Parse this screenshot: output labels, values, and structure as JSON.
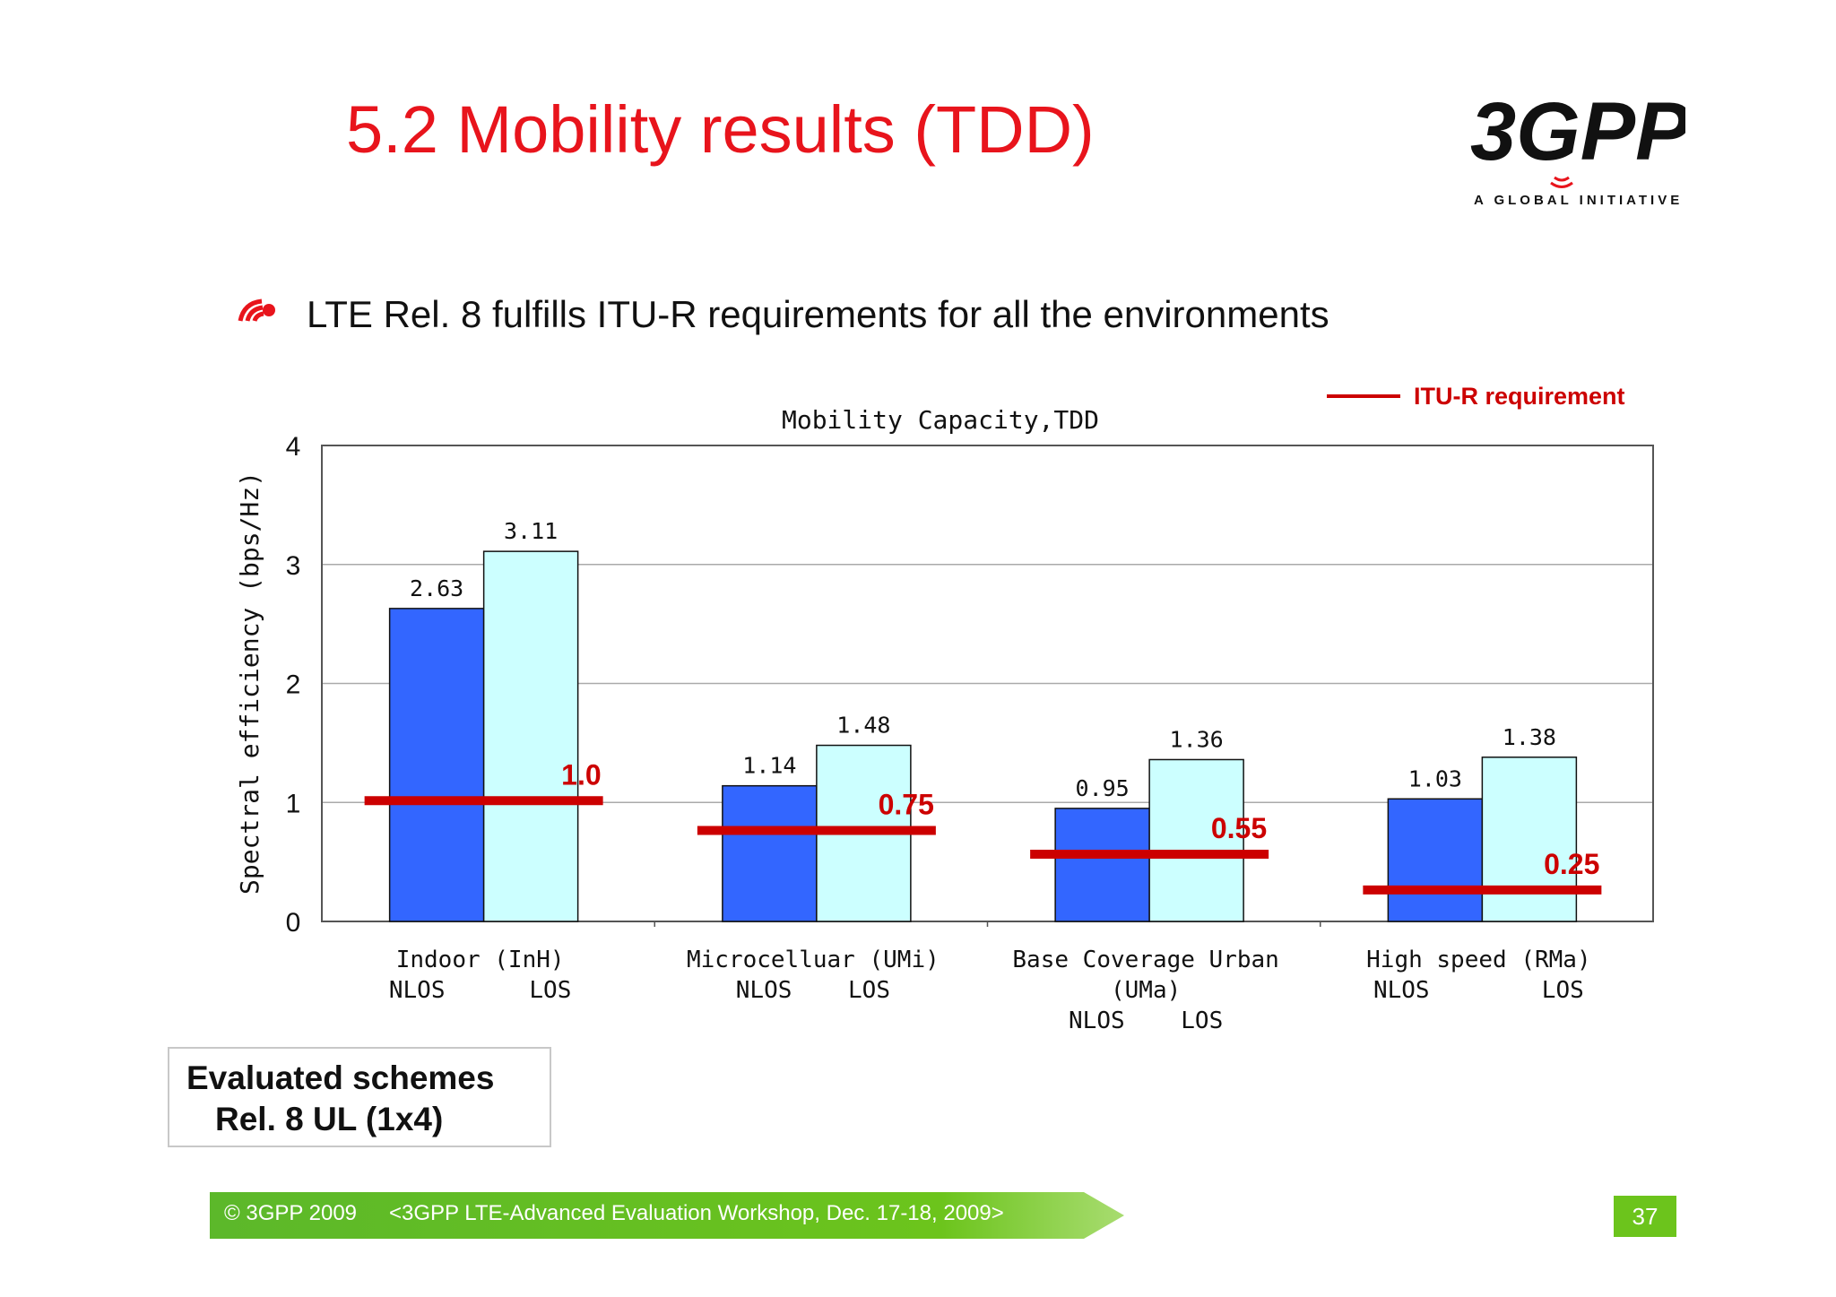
{
  "slide": {
    "title": "5.2 Mobility results (TDD)",
    "bullet": "LTE Rel. 8 fulfills ITU-R requirements for all the environments",
    "logo_text": "3GPP",
    "logo_tagline": "A GLOBAL INITIATIVE",
    "schemes_line1": "Evaluated schemes",
    "schemes_line2": "Rel. 8 UL (1x4)",
    "footer_copyright": "© 3GPP 2009",
    "footer_event": "<3GPP LTE-Advanced Evaluation Workshop, Dec. 17-18, 2009>",
    "page_number": "37"
  },
  "colors": {
    "title": "#e8141c",
    "nlos_bar": "#3366ff",
    "los_bar": "#ccffff",
    "requirement_line": "#cc0000",
    "footer_green": "#5cb82a"
  },
  "chart_data": {
    "type": "bar",
    "title": "Mobility Capacity,TDD",
    "ylabel": "Spectral efficiency (bps/Hz)",
    "xlabel": "",
    "ylim": [
      0,
      4
    ],
    "yticks": [
      "0",
      "1",
      "2",
      "3",
      "4"
    ],
    "grid": true,
    "legend": {
      "label": "ITU-R requirement",
      "placement": "top-right"
    },
    "categories": [
      {
        "lines": [
          "Indoor (InH)"
        ],
        "sub": "NLOS      LOS"
      },
      {
        "lines": [
          "Microcelluar (UMi)"
        ],
        "sub": "NLOS    LOS"
      },
      {
        "lines": [
          "Base Coverage Urban",
          "(UMa)"
        ],
        "sub": "NLOS    LOS"
      },
      {
        "lines": [
          "High speed (RMa)"
        ],
        "sub": "NLOS        LOS"
      }
    ],
    "series": [
      {
        "name": "NLOS",
        "values": [
          2.63,
          1.14,
          0.95,
          1.03
        ],
        "labels": [
          "2.63",
          "1.14",
          "0.95",
          "1.03"
        ]
      },
      {
        "name": "LOS",
        "values": [
          3.11,
          1.48,
          1.36,
          1.38
        ],
        "labels": [
          "3.11",
          "1.48",
          "1.36",
          "1.38"
        ]
      }
    ],
    "requirements": {
      "values": [
        1.0,
        0.75,
        0.55,
        0.25
      ],
      "labels": [
        "1.0",
        "0.75",
        "0.55",
        "0.25"
      ]
    }
  }
}
